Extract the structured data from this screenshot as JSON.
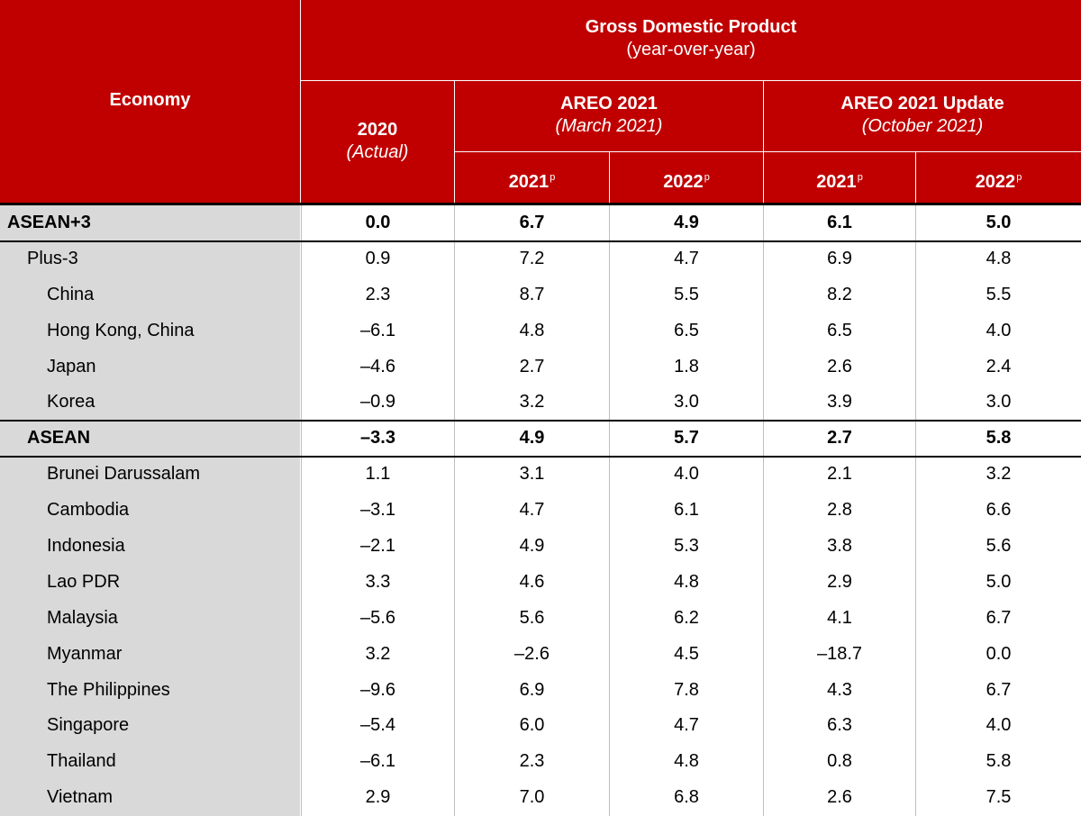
{
  "header": {
    "economy_label": "Economy",
    "gdp_title": "Gross Domestic Product",
    "gdp_subtitle": "(year-over-year)",
    "col2020_year": "2020",
    "col2020_note": "(Actual)",
    "areo_title": "AREO 2021",
    "areo_date": "(March 2021)",
    "update_title": "AREO 2021 Update",
    "update_date": "(October 2021)",
    "sub_years": [
      "2021",
      "2022",
      "2021",
      "2022"
    ],
    "sup_mark": "p"
  },
  "rows": [
    {
      "name": "ASEAN+3",
      "values": [
        "0.0",
        "6.7",
        "4.9",
        "6.1",
        "5.0"
      ]
    },
    {
      "name": "Plus-3",
      "values": [
        "0.9",
        "7.2",
        "4.7",
        "6.9",
        "4.8"
      ]
    },
    {
      "name": "China",
      "values": [
        "2.3",
        "8.7",
        "5.5",
        "8.2",
        "5.5"
      ]
    },
    {
      "name": "Hong Kong, China",
      "values": [
        "–6.1",
        "4.8",
        "6.5",
        "6.5",
        "4.0"
      ]
    },
    {
      "name": "Japan",
      "values": [
        "–4.6",
        "2.7",
        "1.8",
        "2.6",
        "2.4"
      ]
    },
    {
      "name": "Korea",
      "values": [
        "–0.9",
        "3.2",
        "3.0",
        "3.9",
        "3.0"
      ]
    },
    {
      "name": "ASEAN",
      "values": [
        "–3.3",
        "4.9",
        "5.7",
        "2.7",
        "5.8"
      ]
    },
    {
      "name": "Brunei Darussalam",
      "values": [
        "1.1",
        "3.1",
        "4.0",
        "2.1",
        "3.2"
      ]
    },
    {
      "name": "Cambodia",
      "values": [
        "–3.1",
        "4.7",
        "6.1",
        "2.8",
        "6.6"
      ]
    },
    {
      "name": "Indonesia",
      "values": [
        "–2.1",
        "4.9",
        "5.3",
        "3.8",
        "5.6"
      ]
    },
    {
      "name": "Lao PDR",
      "values": [
        "3.3",
        "4.6",
        "4.8",
        "2.9",
        "5.0"
      ]
    },
    {
      "name": "Malaysia",
      "values": [
        "–5.6",
        "5.6",
        "6.2",
        "4.1",
        "6.7"
      ]
    },
    {
      "name": "Myanmar",
      "values": [
        "3.2",
        "–2.6",
        "4.5",
        "–18.7",
        "0.0"
      ]
    },
    {
      "name": "The Philippines",
      "values": [
        "–9.6",
        "6.9",
        "7.8",
        "4.3",
        "6.7"
      ]
    },
    {
      "name": "Singapore",
      "values": [
        "–5.4",
        "6.0",
        "4.7",
        "6.3",
        "4.0"
      ]
    },
    {
      "name": "Thailand",
      "values": [
        "–6.1",
        "2.3",
        "4.8",
        "0.8",
        "5.8"
      ]
    },
    {
      "name": "Vietnam",
      "values": [
        "2.9",
        "7.0",
        "6.8",
        "2.6",
        "7.5"
      ]
    }
  ],
  "colors": {
    "header_bg": "#c00000",
    "label_bg": "#d9d9d9"
  }
}
